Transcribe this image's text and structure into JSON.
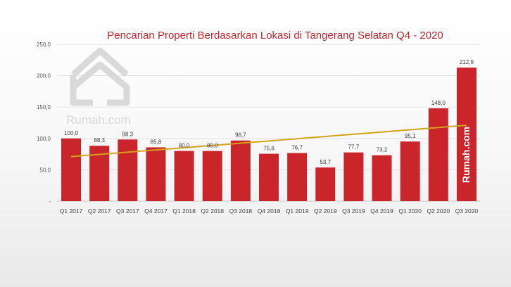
{
  "chart_data": {
    "type": "bar",
    "title": "Pencarian Properti Berdasarkan Lokasi di Tangerang Selatan Q4 - 2020",
    "categories": [
      "Q1 2017",
      "Q2 2017",
      "Q3 2017",
      "Q4 2017",
      "Q1 2018",
      "Q2 2018",
      "Q3 2018",
      "Q4 2018",
      "Q1 2019",
      "Q2 2019",
      "Q3 2019",
      "Q4 2019",
      "Q1 2020",
      "Q2 2020",
      "Q3 2020"
    ],
    "values": [
      100.0,
      88.3,
      98.3,
      85.8,
      80.0,
      80.0,
      96.7,
      75.6,
      76.7,
      53.7,
      77.7,
      73.2,
      95.1,
      148.0,
      212.9
    ],
    "data_labels": [
      "100,0",
      "88,3",
      "98,3",
      "85,8",
      "80,0",
      "80,0",
      "96,7",
      "75,6",
      "76,7",
      "53,7",
      "77,7",
      "73,2",
      "95,1",
      "148,0",
      "212,9"
    ],
    "y_ticks": [
      0,
      50,
      100,
      150,
      200,
      250
    ],
    "y_tick_labels": [
      "-",
      "50,0",
      "100,0",
      "150,0",
      "200,0",
      "250,0"
    ],
    "ylim": [
      0,
      250
    ],
    "xlabel": "",
    "ylabel": "",
    "trendline": {
      "type": "linear",
      "start": 71,
      "end": 121
    },
    "grid": true,
    "colors": {
      "bar": "#c9252b",
      "trend": "#d4a31c",
      "title": "#c0282d",
      "grid": "#d9d9d9"
    }
  },
  "watermark": {
    "logo_text": "Rumah.com",
    "bar_text": "Rumah.com"
  }
}
